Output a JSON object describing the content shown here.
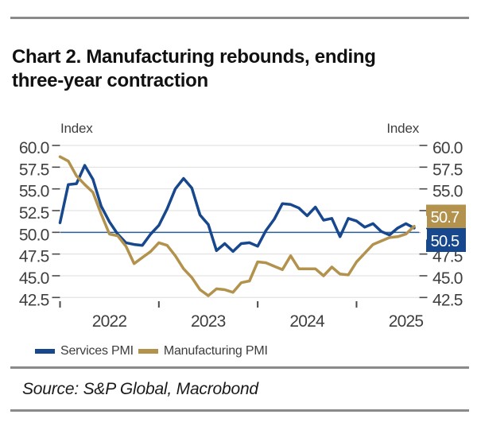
{
  "header": {
    "title_lines": [
      "Chart 2. Manufacturing rebounds, ending",
      "three-year contraction"
    ]
  },
  "source": {
    "text": "Source: S&P Global, Macrobond"
  },
  "chart_data": {
    "type": "line",
    "title": "Chart 2. Manufacturing rebounds, ending three-year contraction",
    "x_frequency": "monthly",
    "x_range": [
      "2022-01",
      "2025-08"
    ],
    "x_axis": {
      "years": [
        "2022",
        "2023",
        "2024",
        "2025"
      ]
    },
    "y_axis": {
      "unit_label": "Index",
      "ticks": [
        60.0,
        57.5,
        55.0,
        52.5,
        50.0,
        47.5,
        45.0,
        42.5
      ],
      "ylim": [
        42.5,
        60.0
      ]
    },
    "baseline_value": 50.0,
    "grid": true,
    "legend_position": "bottom",
    "colors": {
      "grid": "#dedede",
      "tick": "#4a4a4a",
      "axis_text": "#3f3f3f",
      "baseline": "#2a5d9c"
    },
    "series": [
      {
        "name": "Services PMI",
        "color": "#17478c",
        "end_label": "50.5",
        "values": [
          51.1,
          55.5,
          55.6,
          57.7,
          56.1,
          53.0,
          51.2,
          49.8,
          48.8,
          48.6,
          48.5,
          49.8,
          50.8,
          52.7,
          55.0,
          56.2,
          55.1,
          52.0,
          50.9,
          47.9,
          48.7,
          47.8,
          48.7,
          48.8,
          48.4,
          50.2,
          51.5,
          53.3,
          53.2,
          52.8,
          51.9,
          52.9,
          51.4,
          51.6,
          49.5,
          51.6,
          51.3,
          50.6,
          51.0,
          50.1,
          49.7,
          50.5,
          51.0,
          50.5
        ]
      },
      {
        "name": "Manufacturing PMI",
        "color": "#b2924d",
        "end_label": "50.7",
        "values": [
          58.7,
          58.2,
          56.5,
          55.5,
          54.6,
          52.1,
          49.8,
          49.6,
          48.4,
          46.4,
          47.1,
          47.8,
          48.8,
          48.5,
          47.3,
          45.8,
          44.8,
          43.4,
          42.7,
          43.5,
          43.4,
          43.1,
          44.2,
          44.4,
          46.6,
          46.5,
          46.1,
          45.7,
          47.3,
          45.8,
          45.8,
          45.8,
          45.0,
          46.0,
          45.2,
          45.1,
          46.6,
          47.6,
          48.6,
          49.0,
          49.4,
          49.5,
          49.8,
          50.7
        ]
      }
    ],
    "callouts": [
      {
        "series_index": 1,
        "label": "50.7"
      },
      {
        "series_index": 0,
        "label": "50.5"
      }
    ]
  }
}
